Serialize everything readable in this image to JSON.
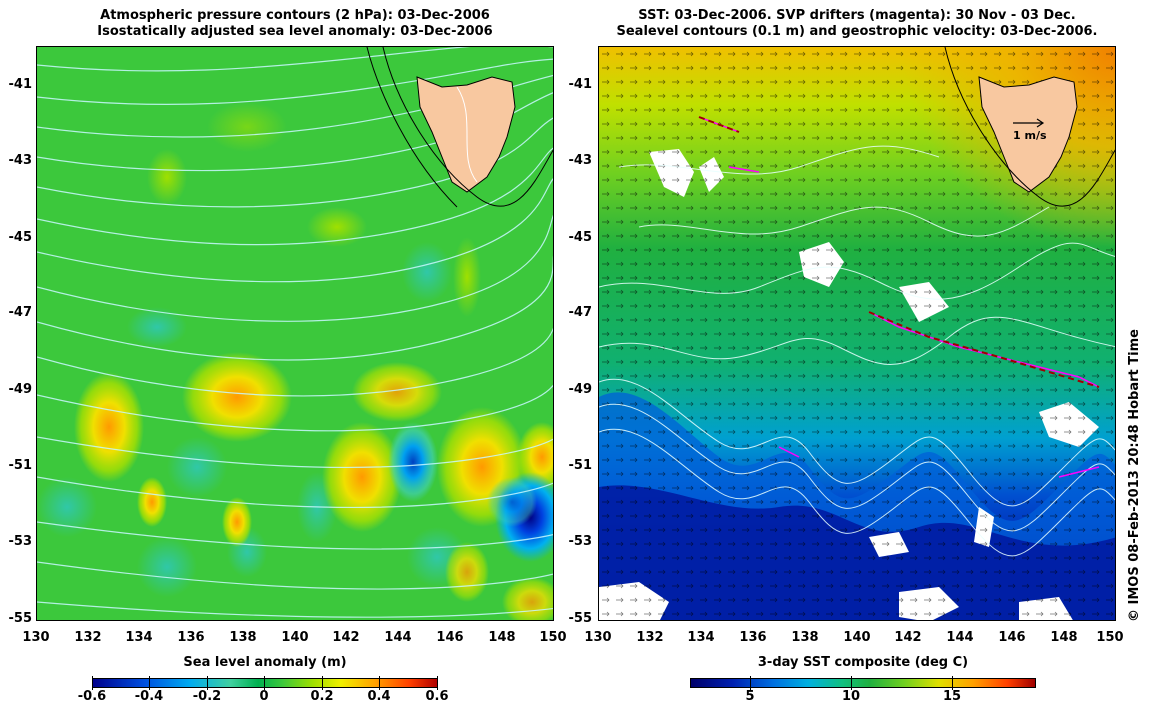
{
  "left": {
    "title_line1": "Atmospheric pressure contours (2 hPa): 03-Dec-2006",
    "title_line2": "Isostatically adjusted sea level anomaly: 03-Dec-2006",
    "colorbar_title": "Sea level anomaly (m)",
    "colorbar_ticks": [
      "-0.6",
      "-0.4",
      "-0.2",
      "0",
      "0.2",
      "0.4",
      "0.6"
    ],
    "colors": {
      "base": "#3cc83c",
      "land": "#f8c8a0",
      "contour": "#b0f0ff"
    }
  },
  "right": {
    "title_line1": "SST: 03-Dec-2006. SVP drifters (magenta): 30 Nov - 03 Dec.",
    "title_line2": "Sealevel contours (0.1 m) and geostrophic velocity: 03-Dec-2006.",
    "colorbar_title": "3-day SST composite (deg C)",
    "colorbar_ticks": [
      "5",
      "10",
      "15"
    ],
    "velocity_scale_label": "1 m/s",
    "colors": {
      "warm": "#f0a000",
      "mid": "#20b040",
      "cold": "#0020b0",
      "drifter": "#ff00ff"
    }
  },
  "axes": {
    "y_ticks": [
      "-41",
      "-43",
      "-45",
      "-47",
      "-49",
      "-51",
      "-53",
      "-55"
    ],
    "x_ticks": [
      "130",
      "132",
      "134",
      "136",
      "138",
      "140",
      "142",
      "144",
      "146",
      "148",
      "150"
    ]
  },
  "copyright": "© IMOS 08-Feb-2013 20:48 Hobart Time"
}
